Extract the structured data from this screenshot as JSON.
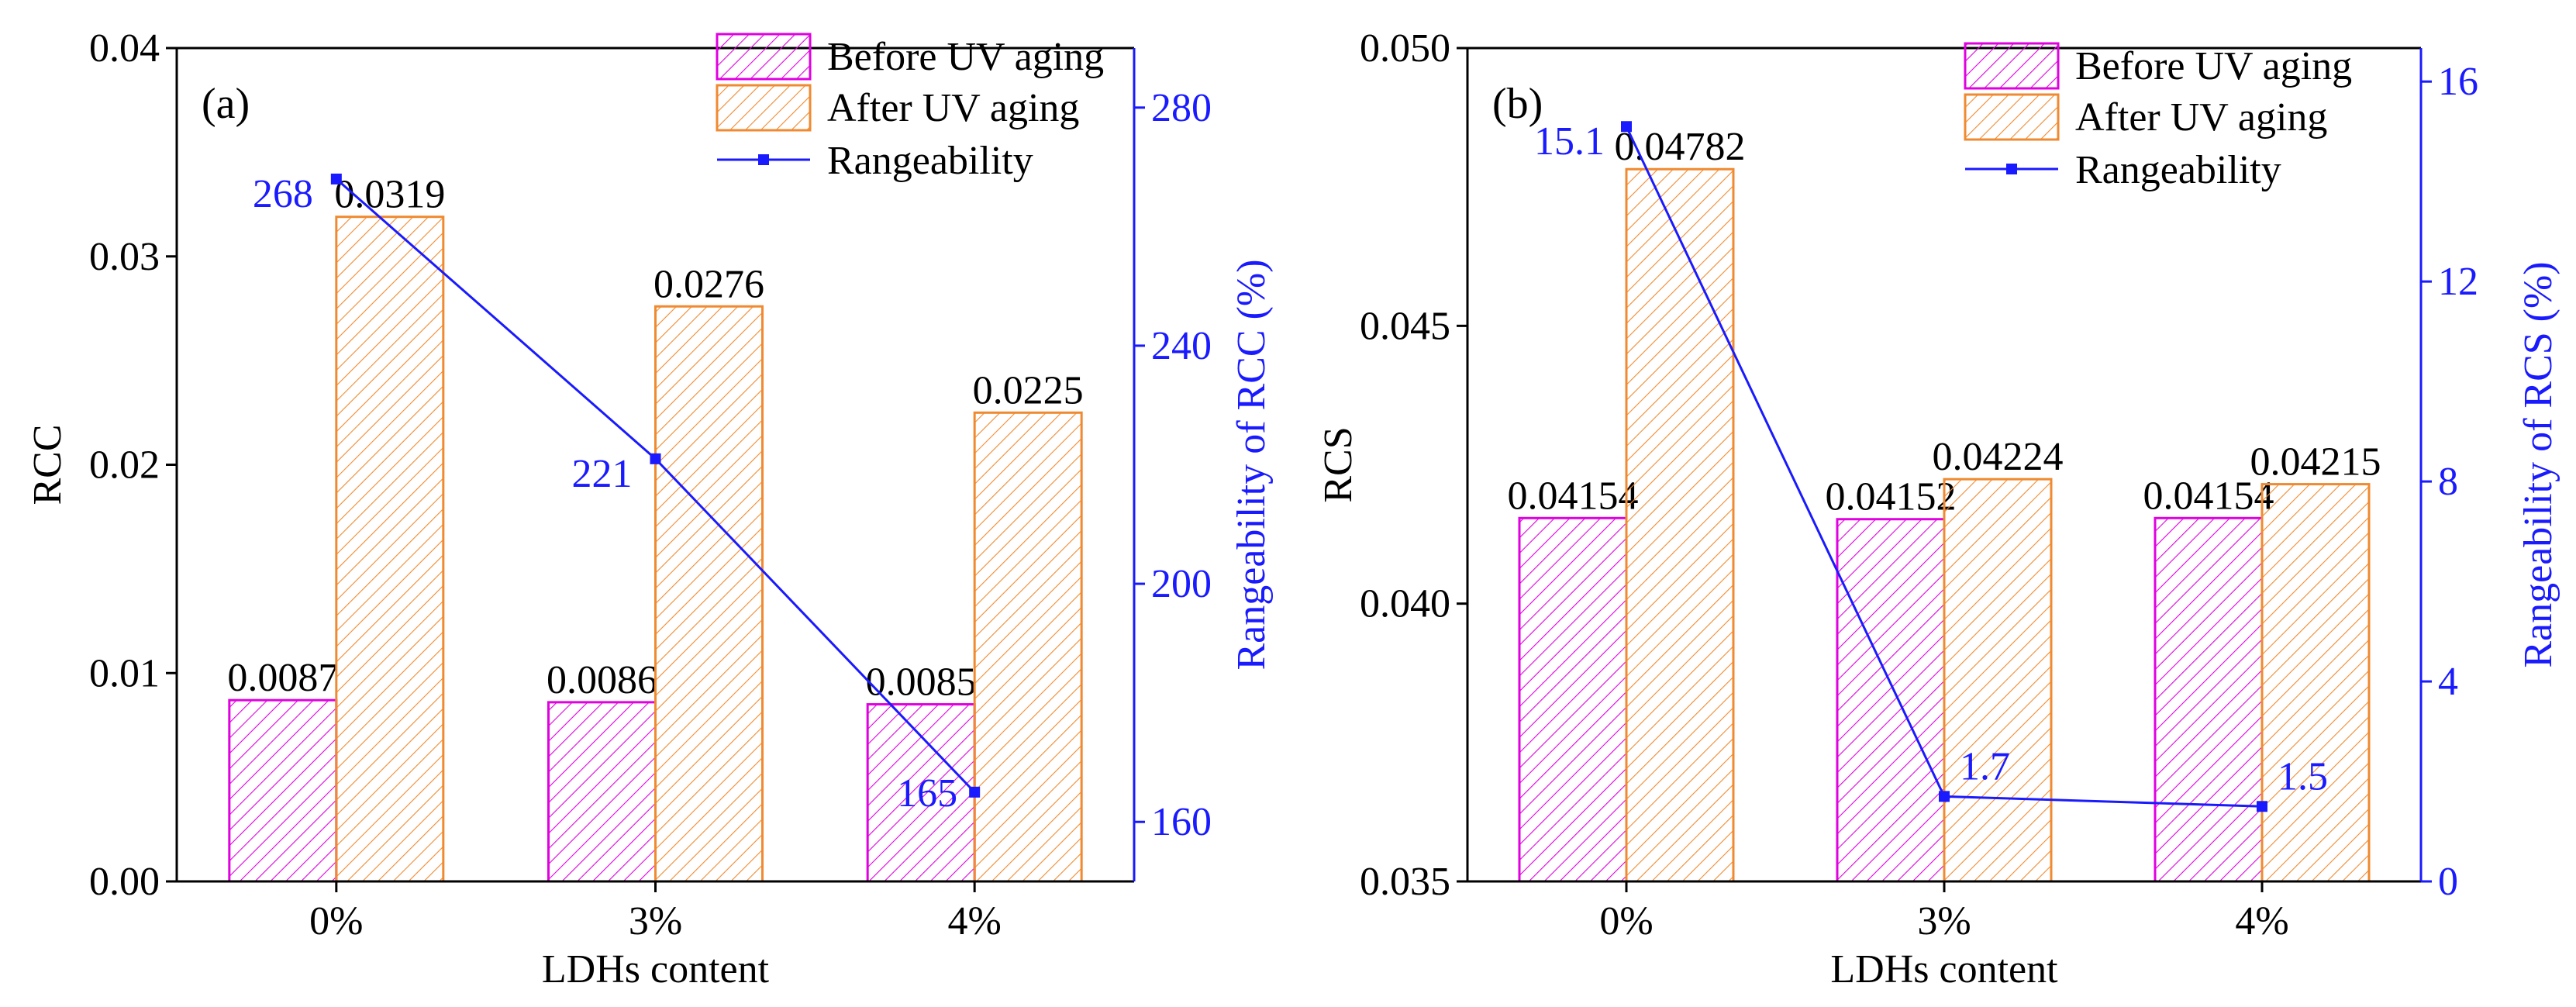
{
  "colors": {
    "before_uv": "#e000e0",
    "after_uv": "#f08a30",
    "line": "#1a1aff",
    "axis": "#000000",
    "right_axis": "#1a1aff"
  },
  "chart_data": [
    {
      "type": "bar",
      "panel_label": "(a)",
      "title": "",
      "categories": [
        "0%",
        "3%",
        "4%"
      ],
      "xlabel": "LDHs content",
      "ylabel": "RCC",
      "y2label": "Rangeability of RCC (%)",
      "ylim": [
        0,
        0.04
      ],
      "y2lim": [
        150,
        290
      ],
      "yticks": [
        0,
        0.01,
        0.02,
        0.03,
        0.04
      ],
      "ytick_labels": [
        "0.00",
        "0.01",
        "0.02",
        "0.03",
        "0.04"
      ],
      "y2ticks": [
        160,
        200,
        240,
        280
      ],
      "y2tick_labels": [
        "160",
        "200",
        "240",
        "280"
      ],
      "series": [
        {
          "name": "Before UV aging",
          "values": [
            0.0087,
            0.0086,
            0.0085
          ],
          "labels": [
            "0.0087",
            "0.0086",
            "0.0085"
          ]
        },
        {
          "name": "After UV aging",
          "values": [
            0.0319,
            0.0276,
            0.0225
          ],
          "labels": [
            "0.0319",
            "0.0276",
            "0.0225"
          ]
        }
      ],
      "line": {
        "name": "Rangeability",
        "values": [
          268,
          221,
          165
        ],
        "labels": [
          "268",
          "221",
          "165"
        ]
      },
      "legend": [
        "Before UV aging",
        "After UV aging",
        "Rangeability"
      ],
      "legend_position": "top-right"
    },
    {
      "type": "bar",
      "panel_label": "(b)",
      "title": "",
      "categories": [
        "0%",
        "3%",
        "4%"
      ],
      "xlabel": "LDHs content",
      "ylabel": "RCS",
      "y2label": "Rangeability of RCS (%)",
      "ylim": [
        0.035,
        0.05
      ],
      "y2lim": [
        0,
        16.67
      ],
      "yticks": [
        0.035,
        0.04,
        0.045,
        0.05
      ],
      "ytick_labels": [
        "0.035",
        "0.040",
        "0.045",
        "0.050"
      ],
      "y2ticks": [
        0,
        4,
        8,
        12,
        16
      ],
      "y2tick_labels": [
        "0",
        "4",
        "8",
        "12",
        "16"
      ],
      "series": [
        {
          "name": "Before UV aging",
          "values": [
            0.04154,
            0.04152,
            0.04154
          ],
          "labels": [
            "0.04154",
            "0.04152",
            "0.04154"
          ]
        },
        {
          "name": "After UV aging",
          "values": [
            0.04782,
            0.04224,
            0.04215
          ],
          "labels": [
            "0.04782",
            "0.04224",
            "0.04215"
          ]
        }
      ],
      "line": {
        "name": "Rangeability",
        "values": [
          15.1,
          1.7,
          1.5
        ],
        "labels": [
          "15.1",
          "1.7",
          "1.5"
        ]
      },
      "legend": [
        "Before UV aging",
        "After UV aging",
        "Rangeability"
      ],
      "legend_position": "top-right"
    }
  ]
}
